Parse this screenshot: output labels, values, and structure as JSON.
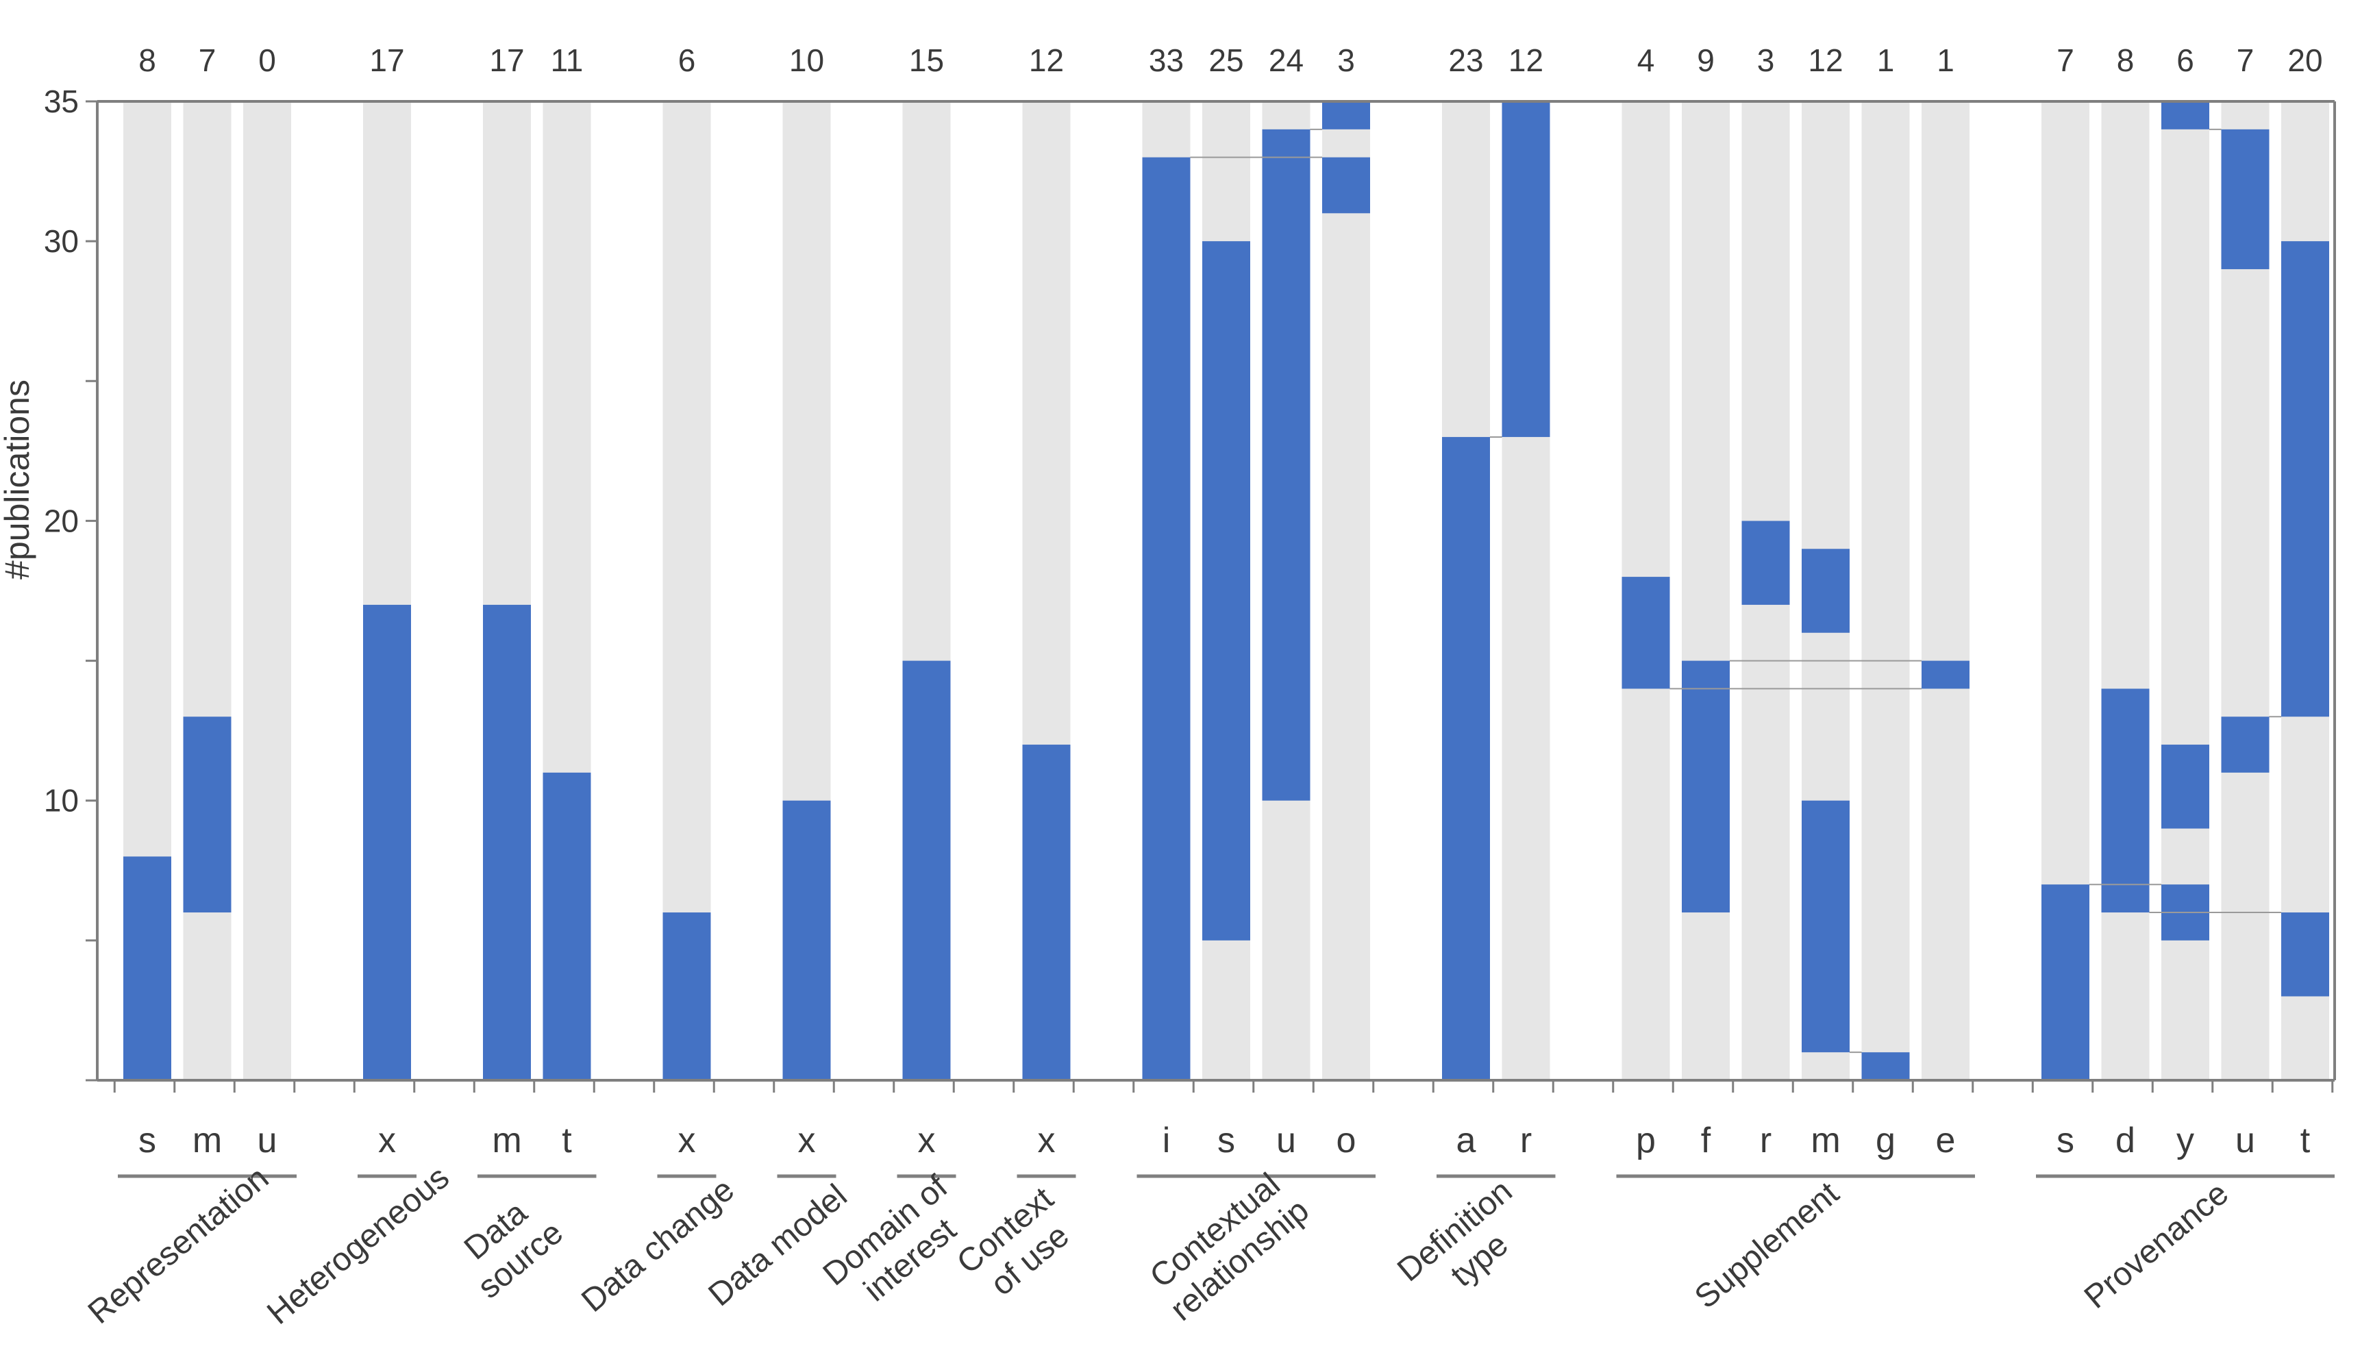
{
  "chart_data": {
    "type": "bar",
    "ylabel": "#publications",
    "ylim": [
      0,
      35
    ],
    "yticks": [
      10,
      20,
      30,
      35
    ],
    "bg_color": "#e6e6e6",
    "bar_color": "#4472c4",
    "line_color": "#9a9a9a",
    "axis_color": "#7f7f7f",
    "groups": [
      {
        "label": [
          "Representation"
        ],
        "columns": [
          {
            "label": "s",
            "count": 8,
            "segments": [
              [
                0,
                8
              ]
            ]
          },
          {
            "label": "m",
            "count": 7,
            "segments": [
              [
                6,
                13
              ]
            ]
          },
          {
            "label": "u",
            "count": 0,
            "segments": []
          }
        ]
      },
      {
        "label": [
          "Heterogeneous"
        ],
        "columns": [
          {
            "label": "x",
            "count": 17,
            "segments": [
              [
                0,
                17
              ]
            ]
          }
        ]
      },
      {
        "label": [
          "Data",
          "source"
        ],
        "columns": [
          {
            "label": "m",
            "count": 17,
            "segments": [
              [
                0,
                17
              ]
            ]
          },
          {
            "label": "t",
            "count": 11,
            "segments": [
              [
                0,
                11
              ]
            ]
          }
        ]
      },
      {
        "label": [
          "Data change"
        ],
        "columns": [
          {
            "label": "x",
            "count": 6,
            "segments": [
              [
                0,
                6
              ]
            ]
          }
        ]
      },
      {
        "label": [
          "Data model"
        ],
        "columns": [
          {
            "label": "x",
            "count": 10,
            "segments": [
              [
                0,
                10
              ]
            ]
          }
        ]
      },
      {
        "label": [
          "Domain of",
          "interest"
        ],
        "columns": [
          {
            "label": "x",
            "count": 15,
            "segments": [
              [
                0,
                15
              ]
            ]
          }
        ]
      },
      {
        "label": [
          "Context",
          "of use"
        ],
        "columns": [
          {
            "label": "x",
            "count": 12,
            "segments": [
              [
                0,
                12
              ]
            ]
          }
        ]
      },
      {
        "label": [
          "Contextual",
          "relationship"
        ],
        "columns": [
          {
            "label": "i",
            "count": 33,
            "segments": [
              [
                0,
                33
              ]
            ]
          },
          {
            "label": "s",
            "count": 25,
            "segments": [
              [
                5,
                30
              ]
            ]
          },
          {
            "label": "u",
            "count": 24,
            "segments": [
              [
                10,
                34
              ]
            ]
          },
          {
            "label": "o",
            "count": 3,
            "segments": [
              [
                34,
                35
              ],
              [
                31,
                33
              ]
            ]
          }
        ]
      },
      {
        "label": [
          "Definition",
          "type"
        ],
        "columns": [
          {
            "label": "a",
            "count": 23,
            "segments": [
              [
                0,
                23
              ]
            ]
          },
          {
            "label": "r",
            "count": 12,
            "segments": [
              [
                23,
                35
              ]
            ]
          }
        ]
      },
      {
        "label": [
          "Supplement"
        ],
        "columns": [
          {
            "label": "p",
            "count": 4,
            "segments": [
              [
                14,
                18
              ]
            ]
          },
          {
            "label": "f",
            "count": 9,
            "segments": [
              [
                6,
                15
              ]
            ]
          },
          {
            "label": "r",
            "count": 3,
            "segments": [
              [
                17,
                20
              ]
            ]
          },
          {
            "label": "m",
            "count": 12,
            "segments": [
              [
                16,
                19
              ],
              [
                1,
                10
              ]
            ]
          },
          {
            "label": "g",
            "count": 1,
            "segments": [
              [
                0,
                1
              ]
            ]
          },
          {
            "label": "e",
            "count": 1,
            "segments": [
              [
                14,
                15
              ]
            ]
          }
        ]
      },
      {
        "label": [
          "Provenance"
        ],
        "columns": [
          {
            "label": "s",
            "count": 7,
            "segments": [
              [
                0,
                7
              ]
            ]
          },
          {
            "label": "d",
            "count": 8,
            "segments": [
              [
                6,
                14
              ]
            ]
          },
          {
            "label": "y",
            "count": 6,
            "segments": [
              [
                34,
                35
              ],
              [
                9,
                12
              ],
              [
                5,
                7
              ]
            ]
          },
          {
            "label": "u",
            "count": 7,
            "segments": [
              [
                29,
                34
              ],
              [
                11,
                13
              ]
            ]
          },
          {
            "label": "t",
            "count": 20,
            "segments": [
              [
                13,
                30
              ],
              [
                3,
                6
              ]
            ]
          }
        ]
      }
    ]
  }
}
